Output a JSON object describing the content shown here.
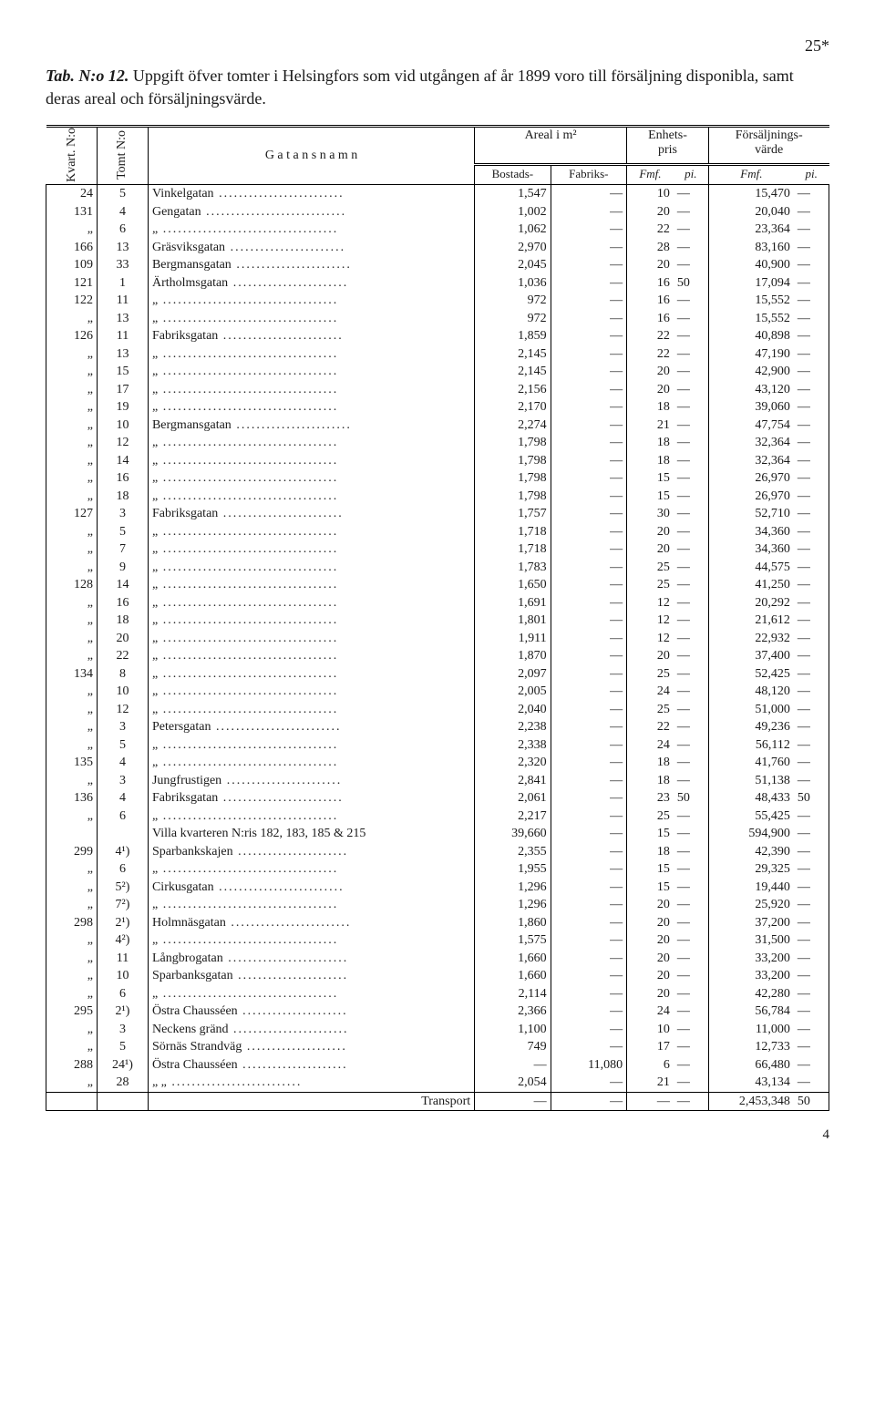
{
  "page_number_top": "25*",
  "title_prefix": "Tab. N:o 12.",
  "title_rest": "Uppgift öfver tomter i Helsingfors som vid utgången af år 1899 voro till försäljning disponibla, samt deras areal och försäljningsvärde.",
  "headers": {
    "kvart": "Kvart. N:o",
    "tomt": "Tomt N:o",
    "gatan": "G a t a n s   n a m n",
    "areal": "Areal i m²",
    "bostads": "Bostads-",
    "fabriks": "Fabriks-",
    "enhetspris": "Enhets-\npris",
    "forsaljningsvarde": "Försäljnings-\nvärde",
    "fmf": "Fmf.",
    "pi": "pi."
  },
  "rows": [
    {
      "kvart": "24",
      "tomt": "5",
      "gatan": "Vinkelgatan",
      "bost": "1,547",
      "fabr": "—",
      "pf": "10",
      "pp": "—",
      "vf": "15,470",
      "vp": "—"
    },
    {
      "kvart": "131",
      "tomt": "4",
      "gatan": "Gengatan",
      "bost": "1,002",
      "fabr": "—",
      "pf": "20",
      "pp": "—",
      "vf": "20,040",
      "vp": "—"
    },
    {
      "kvart": "„",
      "tomt": "6",
      "gatan": "„",
      "bost": "1,062",
      "fabr": "—",
      "pf": "22",
      "pp": "—",
      "vf": "23,364",
      "vp": "—"
    },
    {
      "kvart": "166",
      "tomt": "13",
      "gatan": "Gräsviksgatan",
      "bost": "2,970",
      "fabr": "—",
      "pf": "28",
      "pp": "—",
      "vf": "83,160",
      "vp": "—"
    },
    {
      "kvart": "109",
      "tomt": "33",
      "gatan": "Bergmansgatan",
      "bost": "2,045",
      "fabr": "—",
      "pf": "20",
      "pp": "—",
      "vf": "40,900",
      "vp": "—"
    },
    {
      "kvart": "121",
      "tomt": "1",
      "gatan": "Ärtholmsgatan",
      "bost": "1,036",
      "fabr": "—",
      "pf": "16",
      "pp": "50",
      "vf": "17,094",
      "vp": "—"
    },
    {
      "kvart": "122",
      "tomt": "11",
      "gatan": "„",
      "bost": "972",
      "fabr": "—",
      "pf": "16",
      "pp": "—",
      "vf": "15,552",
      "vp": "—"
    },
    {
      "kvart": "„",
      "tomt": "13",
      "gatan": "„",
      "bost": "972",
      "fabr": "—",
      "pf": "16",
      "pp": "—",
      "vf": "15,552",
      "vp": "—"
    },
    {
      "kvart": "126",
      "tomt": "11",
      "gatan": "Fabriksgatan",
      "bost": "1,859",
      "fabr": "—",
      "pf": "22",
      "pp": "—",
      "vf": "40,898",
      "vp": "—"
    },
    {
      "kvart": "„",
      "tomt": "13",
      "gatan": "„",
      "bost": "2,145",
      "fabr": "—",
      "pf": "22",
      "pp": "—",
      "vf": "47,190",
      "vp": "—"
    },
    {
      "kvart": "„",
      "tomt": "15",
      "gatan": "„",
      "bost": "2,145",
      "fabr": "—",
      "pf": "20",
      "pp": "—",
      "vf": "42,900",
      "vp": "—"
    },
    {
      "kvart": "„",
      "tomt": "17",
      "gatan": "„",
      "bost": "2,156",
      "fabr": "—",
      "pf": "20",
      "pp": "—",
      "vf": "43,120",
      "vp": "—"
    },
    {
      "kvart": "„",
      "tomt": "19",
      "gatan": "„",
      "bost": "2,170",
      "fabr": "—",
      "pf": "18",
      "pp": "—",
      "vf": "39,060",
      "vp": "—"
    },
    {
      "kvart": "„",
      "tomt": "10",
      "gatan": "Bergmansgatan",
      "bost": "2,274",
      "fabr": "—",
      "pf": "21",
      "pp": "—",
      "vf": "47,754",
      "vp": "—"
    },
    {
      "kvart": "„",
      "tomt": "12",
      "gatan": "„",
      "bost": "1,798",
      "fabr": "—",
      "pf": "18",
      "pp": "—",
      "vf": "32,364",
      "vp": "—"
    },
    {
      "kvart": "„",
      "tomt": "14",
      "gatan": "„",
      "bost": "1,798",
      "fabr": "—",
      "pf": "18",
      "pp": "—",
      "vf": "32,364",
      "vp": "—"
    },
    {
      "kvart": "„",
      "tomt": "16",
      "gatan": "„",
      "bost": "1,798",
      "fabr": "—",
      "pf": "15",
      "pp": "—",
      "vf": "26,970",
      "vp": "—"
    },
    {
      "kvart": "„",
      "tomt": "18",
      "gatan": "„",
      "bost": "1,798",
      "fabr": "—",
      "pf": "15",
      "pp": "—",
      "vf": "26,970",
      "vp": "—"
    },
    {
      "kvart": "127",
      "tomt": "3",
      "gatan": "Fabriksgatan",
      "bost": "1,757",
      "fabr": "—",
      "pf": "30",
      "pp": "—",
      "vf": "52,710",
      "vp": "—"
    },
    {
      "kvart": "„",
      "tomt": "5",
      "gatan": "„",
      "bost": "1,718",
      "fabr": "—",
      "pf": "20",
      "pp": "—",
      "vf": "34,360",
      "vp": "—"
    },
    {
      "kvart": "„",
      "tomt": "7",
      "gatan": "„",
      "bost": "1,718",
      "fabr": "—",
      "pf": "20",
      "pp": "—",
      "vf": "34,360",
      "vp": "—"
    },
    {
      "kvart": "„",
      "tomt": "9",
      "gatan": "„",
      "bost": "1,783",
      "fabr": "—",
      "pf": "25",
      "pp": "—",
      "vf": "44,575",
      "vp": "—"
    },
    {
      "kvart": "128",
      "tomt": "14",
      "gatan": "„",
      "bost": "1,650",
      "fabr": "—",
      "pf": "25",
      "pp": "—",
      "vf": "41,250",
      "vp": "—"
    },
    {
      "kvart": "„",
      "tomt": "16",
      "gatan": "„",
      "bost": "1,691",
      "fabr": "—",
      "pf": "12",
      "pp": "—",
      "vf": "20,292",
      "vp": "—"
    },
    {
      "kvart": "„",
      "tomt": "18",
      "gatan": "„",
      "bost": "1,801",
      "fabr": "—",
      "pf": "12",
      "pp": "—",
      "vf": "21,612",
      "vp": "—"
    },
    {
      "kvart": "„",
      "tomt": "20",
      "gatan": "„",
      "bost": "1,911",
      "fabr": "—",
      "pf": "12",
      "pp": "—",
      "vf": "22,932",
      "vp": "—"
    },
    {
      "kvart": "„",
      "tomt": "22",
      "gatan": "„",
      "bost": "1,870",
      "fabr": "—",
      "pf": "20",
      "pp": "—",
      "vf": "37,400",
      "vp": "—"
    },
    {
      "kvart": "134",
      "tomt": "8",
      "gatan": "„",
      "bost": "2,097",
      "fabr": "—",
      "pf": "25",
      "pp": "—",
      "vf": "52,425",
      "vp": "—"
    },
    {
      "kvart": "„",
      "tomt": "10",
      "gatan": "„",
      "bost": "2,005",
      "fabr": "—",
      "pf": "24",
      "pp": "—",
      "vf": "48,120",
      "vp": "—"
    },
    {
      "kvart": "„",
      "tomt": "12",
      "gatan": "„",
      "bost": "2,040",
      "fabr": "—",
      "pf": "25",
      "pp": "—",
      "vf": "51,000",
      "vp": "—"
    },
    {
      "kvart": "„",
      "tomt": "3",
      "gatan": "Petersgatan",
      "bost": "2,238",
      "fabr": "—",
      "pf": "22",
      "pp": "—",
      "vf": "49,236",
      "vp": "—"
    },
    {
      "kvart": "„",
      "tomt": "5",
      "gatan": "„",
      "bost": "2,338",
      "fabr": "—",
      "pf": "24",
      "pp": "—",
      "vf": "56,112",
      "vp": "—"
    },
    {
      "kvart": "135",
      "tomt": "4",
      "gatan": "„",
      "bost": "2,320",
      "fabr": "—",
      "pf": "18",
      "pp": "—",
      "vf": "41,760",
      "vp": "—"
    },
    {
      "kvart": "„",
      "tomt": "3",
      "gatan": "Jungfrustigen",
      "bost": "2,841",
      "fabr": "—",
      "pf": "18",
      "pp": "—",
      "vf": "51,138",
      "vp": "—"
    },
    {
      "kvart": "136",
      "tomt": "4",
      "gatan": "Fabriksgatan",
      "bost": "2,061",
      "fabr": "—",
      "pf": "23",
      "pp": "50",
      "vf": "48,433",
      "vp": "50"
    },
    {
      "kvart": "„",
      "tomt": "6",
      "gatan": "„",
      "bost": "2,217",
      "fabr": "—",
      "pf": "25",
      "pp": "—",
      "vf": "55,425",
      "vp": "—"
    },
    {
      "kvart": "",
      "tomt": "",
      "gatan": "Villa kvarteren N:ris 182, 183, 185 & 215",
      "bost": "39,660",
      "fabr": "—",
      "pf": "15",
      "pp": "—",
      "vf": "594,900",
      "vp": "—"
    },
    {
      "kvart": "299",
      "tomt": "4¹)",
      "gatan": "Sparbankskajen",
      "bost": "2,355",
      "fabr": "—",
      "pf": "18",
      "pp": "—",
      "vf": "42,390",
      "vp": "—"
    },
    {
      "kvart": "„",
      "tomt": "6",
      "gatan": "„",
      "bost": "1,955",
      "fabr": "—",
      "pf": "15",
      "pp": "—",
      "vf": "29,325",
      "vp": "—"
    },
    {
      "kvart": "„",
      "tomt": "5²)",
      "gatan": "Cirkusgatan",
      "bost": "1,296",
      "fabr": "—",
      "pf": "15",
      "pp": "—",
      "vf": "19,440",
      "vp": "—"
    },
    {
      "kvart": "„",
      "tomt": "7²)",
      "gatan": "„",
      "bost": "1,296",
      "fabr": "—",
      "pf": "20",
      "pp": "—",
      "vf": "25,920",
      "vp": "—"
    },
    {
      "kvart": "298",
      "tomt": "2¹)",
      "gatan": "Holmnäsgatan",
      "bost": "1,860",
      "fabr": "—",
      "pf": "20",
      "pp": "—",
      "vf": "37,200",
      "vp": "—"
    },
    {
      "kvart": "„",
      "tomt": "4²)",
      "gatan": "„",
      "bost": "1,575",
      "fabr": "—",
      "pf": "20",
      "pp": "—",
      "vf": "31,500",
      "vp": "—"
    },
    {
      "kvart": "„",
      "tomt": "11",
      "gatan": "Långbrogatan",
      "bost": "1,660",
      "fabr": "—",
      "pf": "20",
      "pp": "—",
      "vf": "33,200",
      "vp": "—"
    },
    {
      "kvart": "„",
      "tomt": "10",
      "gatan": "Sparbanksgatan",
      "bost": "1,660",
      "fabr": "—",
      "pf": "20",
      "pp": "—",
      "vf": "33,200",
      "vp": "—"
    },
    {
      "kvart": "„",
      "tomt": "6",
      "gatan": "„",
      "bost": "2,114",
      "fabr": "—",
      "pf": "20",
      "pp": "—",
      "vf": "42,280",
      "vp": "—"
    },
    {
      "kvart": "295",
      "tomt": "2¹)",
      "gatan": "Östra Chausséen",
      "bost": "2,366",
      "fabr": "—",
      "pf": "24",
      "pp": "—",
      "vf": "56,784",
      "vp": "—"
    },
    {
      "kvart": "„",
      "tomt": "3",
      "gatan": "Neckens gränd",
      "bost": "1,100",
      "fabr": "—",
      "pf": "10",
      "pp": "—",
      "vf": "11,000",
      "vp": "—"
    },
    {
      "kvart": "„",
      "tomt": "5",
      "gatan": "Sörnäs Strandväg",
      "bost": "749",
      "fabr": "—",
      "pf": "17",
      "pp": "—",
      "vf": "12,733",
      "vp": "—"
    },
    {
      "kvart": "288",
      "tomt": "24¹)",
      "gatan": "Östra Chausséen",
      "bost": "—",
      "fabr": "11,080",
      "pf": "6",
      "pp": "—",
      "vf": "66,480",
      "vp": "—"
    },
    {
      "kvart": "„",
      "tomt": "28",
      "gatan": "„        „",
      "bost": "2,054",
      "fabr": "—",
      "pf": "21",
      "pp": "—",
      "vf": "43,134",
      "vp": "—"
    }
  ],
  "transport": {
    "label": "Transport",
    "bost": "—",
    "fabr": "—",
    "pf": "—",
    "pp": "—",
    "vf": "2,453,348",
    "vp": "50"
  },
  "page_number_bottom": "4"
}
